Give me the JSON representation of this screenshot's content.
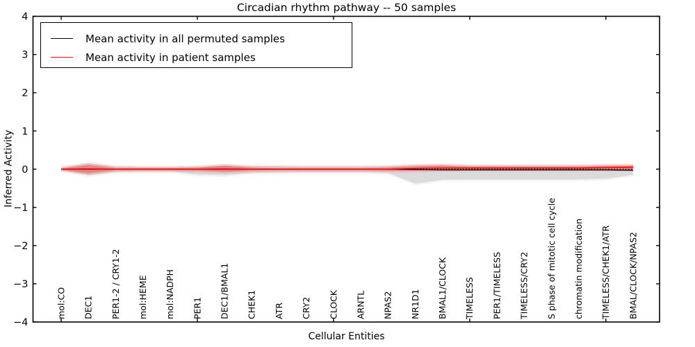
{
  "figure": {
    "background": "#ffffff",
    "frame_color": "#000000"
  },
  "chart_data": {
    "type": "line",
    "title": "Circadian rhythm pathway -- 50 samples",
    "xlabel": "Cellular Entities",
    "ylabel": "Inferred Activity",
    "ylim": [
      -4,
      4
    ],
    "yticks": [
      -4,
      -3,
      -2,
      -1,
      0,
      1,
      2,
      3,
      4
    ],
    "xtick_indices": [
      0,
      5,
      10,
      15,
      20
    ],
    "grid": false,
    "legend_position": "upper left",
    "legend": [
      {
        "label": "Mean activity in all permuted samples",
        "color": "#000000"
      },
      {
        "label": "Mean activity in patient samples",
        "color": "#ff0000"
      }
    ],
    "categories": [
      "mol:CO",
      "DEC1",
      "PER1-2 / CRY1-2",
      "mol:HEME",
      "mol:NADPH",
      "PER1",
      "DEC1/BMAL1",
      "CHEK1",
      "ATR",
      "CRY2",
      "CLOCK",
      "ARNTL",
      "NPAS2",
      "NR1D1",
      "BMAL1/CLOCK",
      "TIMELESS",
      "PER1/TIMELESS",
      "TIMELESS/CRY2",
      "S phase of mitotic cell cycle",
      "chromatin modification",
      "TIMELESS/CHEK1/ATR",
      "BMAL/CLOCK/NPAS2"
    ],
    "series": [
      {
        "name": "Mean activity in all permuted samples",
        "color": "#000000",
        "style": "solid",
        "values": [
          0,
          0,
          0,
          0,
          0,
          0,
          0,
          0,
          0,
          0,
          0,
          0,
          0,
          -0.01,
          -0.02,
          -0.02,
          -0.02,
          -0.02,
          -0.02,
          -0.02,
          -0.02,
          -0.03
        ]
      },
      {
        "name": "Mean activity in patient samples",
        "color": "#ff0000",
        "style": "solid",
        "values": [
          0,
          0.01,
          0,
          0,
          0,
          0,
          0.01,
          0,
          0,
          0,
          0,
          0,
          0,
          0.02,
          0.03,
          0.03,
          0.03,
          0.03,
          0.03,
          0.03,
          0.04,
          0.05
        ]
      }
    ],
    "zero_line": {
      "value": 0,
      "style": "dotted",
      "color": "#000000"
    },
    "bands": [
      {
        "name": "permuted-samples-range",
        "color": "rgba(0,0,0,0.10)",
        "halo_color": "rgba(0,0,0,0.045)",
        "upper": [
          0.03,
          0.16,
          0.07,
          0.05,
          0.05,
          0.06,
          0.1,
          0.08,
          0.08,
          0.07,
          0.07,
          0.07,
          0.08,
          0.1,
          0.09,
          0.09,
          0.09,
          0.09,
          0.09,
          0.09,
          0.09,
          0.08
        ],
        "lower": [
          -0.03,
          -0.16,
          -0.08,
          -0.06,
          -0.06,
          -0.14,
          -0.16,
          -0.1,
          -0.09,
          -0.08,
          -0.08,
          -0.08,
          -0.1,
          -0.38,
          -0.28,
          -0.27,
          -0.27,
          -0.27,
          -0.27,
          -0.27,
          -0.25,
          -0.15
        ]
      },
      {
        "name": "patient-samples-range",
        "color": "rgba(255,0,0,0.30)",
        "halo_color": "rgba(255,0,0,0.12)",
        "upper": [
          0.02,
          0.11,
          0.03,
          0.03,
          0.03,
          0.04,
          0.09,
          0.04,
          0.03,
          0.03,
          0.03,
          0.03,
          0.04,
          0.08,
          0.1,
          0.07,
          0.07,
          0.07,
          0.07,
          0.07,
          0.09,
          0.1
        ],
        "lower": [
          -0.02,
          -0.11,
          -0.03,
          -0.03,
          -0.03,
          -0.04,
          -0.07,
          -0.04,
          -0.03,
          -0.03,
          -0.03,
          -0.03,
          -0.04,
          -0.04,
          -0.02,
          -0.01,
          -0.01,
          -0.01,
          -0.01,
          -0.01,
          -0.01,
          -0.02
        ]
      }
    ]
  }
}
